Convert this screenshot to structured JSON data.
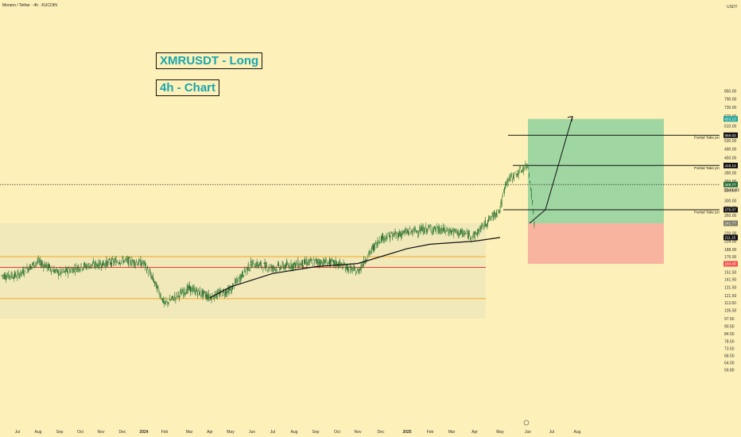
{
  "header": {
    "title": "Monero / Tether · 4h · KUCOIN"
  },
  "annotations": {
    "title_box": "XMRUSDT - Long",
    "timeframe_box": "4h - Chart"
  },
  "chart_data": {
    "type": "line",
    "series_kind": "candlestick",
    "y_scale": "log",
    "currency": "USDT",
    "y_ticks": [
      850.0,
      790.0,
      730.0,
      670.0,
      610.0,
      530.0,
      490.0,
      450.0,
      390.0,
      360.0,
      330.0,
      300.0,
      280.0,
      260.0,
      220.0,
      204.0,
      188.0,
      176.0,
      151.5,
      141.5,
      131.5,
      121.5,
      113.5,
      105.5,
      97.5,
      90.5,
      84.5,
      78.5,
      73.5,
      68.5,
      64.0,
      59.8
    ],
    "x_ticks": [
      "Jul",
      "Aug",
      "Sep",
      "Oct",
      "Nov",
      "Dec",
      "2024",
      "Feb",
      "Mar",
      "Apr",
      "May",
      "Jun",
      "Jul",
      "Aug",
      "Sep",
      "Oct",
      "Nov",
      "Dec",
      "2025",
      "Feb",
      "Mar",
      "Apr",
      "May",
      "Jun",
      "Jul",
      "Aug"
    ],
    "price_path": [
      [
        "Jul",
        147
      ],
      [
        "Aug",
        168
      ],
      [
        "Sep",
        150
      ],
      [
        "Oct",
        160
      ],
      [
        "Nov",
        164
      ],
      [
        "Dec",
        170
      ],
      [
        "2024",
        165
      ],
      [
        "Feb",
        112
      ],
      [
        "Mar",
        130
      ],
      [
        "Apr",
        120
      ],
      [
        "May",
        128
      ],
      [
        "Jun",
        165
      ],
      [
        "Jul",
        158
      ],
      [
        "Aug",
        163
      ],
      [
        "Sep",
        168
      ],
      [
        "Oct",
        165
      ],
      [
        "Nov",
        152
      ],
      [
        "Dec",
        210
      ],
      [
        "2025",
        222
      ],
      [
        "Feb",
        230
      ],
      [
        "Mar",
        224
      ],
      [
        "Apr",
        215
      ],
      [
        "May",
        276
      ],
      [
        "May",
        360
      ],
      [
        "Jun",
        419.13
      ],
      [
        "Jun",
        244
      ]
    ],
    "moving_average_path": [
      [
        "Apr",
        119
      ],
      [
        "May",
        132
      ],
      [
        "Jul",
        150
      ],
      [
        "Sep",
        160
      ],
      [
        "Nov",
        165
      ],
      [
        "Dec",
        176
      ],
      [
        "2025",
        190
      ],
      [
        "Feb",
        198
      ],
      [
        "Apr",
        204
      ],
      [
        "May",
        211.15
      ]
    ],
    "horizontal_lines": [
      {
        "name": "resistance",
        "value": 176,
        "color": "#f5a623"
      },
      {
        "name": "mid",
        "value": 159,
        "color": "#e53935"
      },
      {
        "name": "support",
        "value": 118,
        "color": "#f5a623"
      }
    ],
    "current_price": 349.77,
    "countdown": "03:41:43",
    "trade": {
      "entry": 241.77,
      "stop": 164.4,
      "target": 653.13,
      "take_profits": [
        {
          "label": "Partial Take profit",
          "value": 275.07
        },
        {
          "label": "Partial Take profit",
          "value": 419.13
        },
        {
          "label": "Partial Take profit",
          "value": 559.03
        }
      ],
      "profit_color": "#8fd19e",
      "loss_color": "#f7a99a"
    },
    "price_tags": [
      {
        "text": "653.13",
        "value": 653.13,
        "color": "#26a69a"
      },
      {
        "text": "559.03",
        "value": 559.03,
        "color": "#111111"
      },
      {
        "text": "419.13",
        "value": 419.13,
        "color": "#111111"
      },
      {
        "text": "349.77",
        "value": 349.77,
        "color": "#2a6f3b"
      },
      {
        "text": "275.07",
        "value": 275.07,
        "color": "#111111"
      },
      {
        "text": "241.77",
        "value": 241.77,
        "color": "#7e7e6a"
      },
      {
        "text": "211.15",
        "value": 211.15,
        "color": "#111111"
      },
      {
        "text": "164.40",
        "value": 164.4,
        "color": "#ef5350"
      }
    ]
  }
}
